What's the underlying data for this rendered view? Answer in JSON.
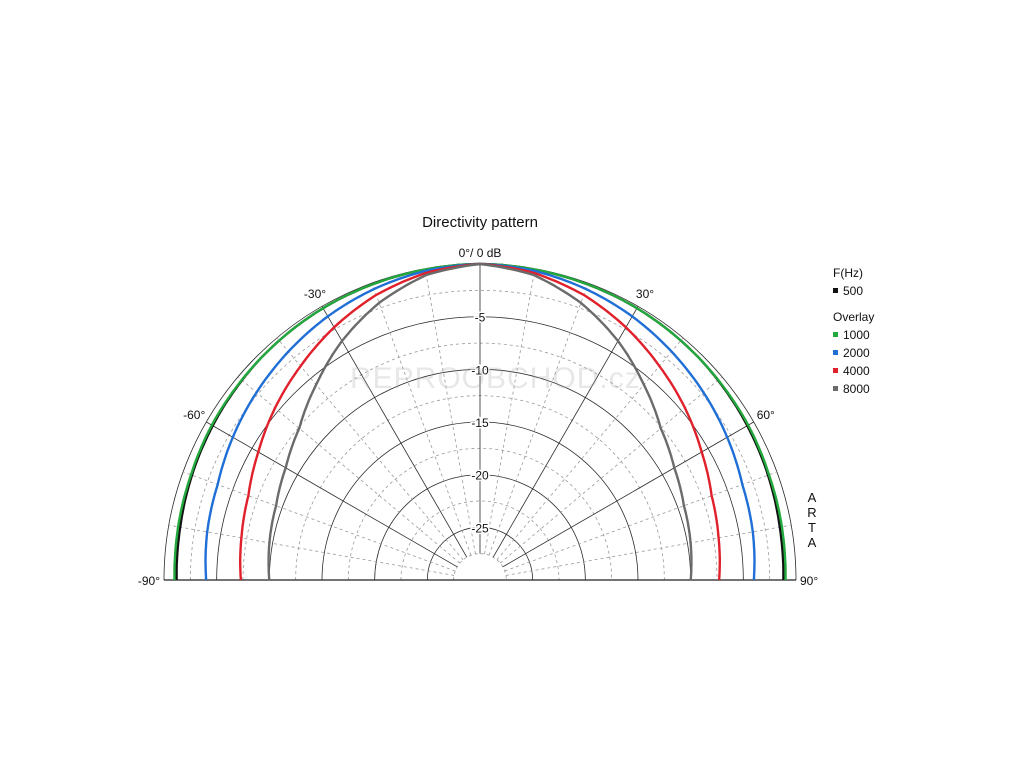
{
  "chart_data": {
    "type": "polar",
    "title": "Directivity pattern",
    "top_label": "0°/ 0 dB",
    "vertical_label": [
      "A",
      "R",
      "T",
      "A"
    ],
    "angle_range": [
      -90,
      90
    ],
    "angle_ticks": [
      {
        "angle": -90,
        "label": "-90°"
      },
      {
        "angle": -60,
        "label": "-60°"
      },
      {
        "angle": -30,
        "label": "-30°"
      },
      {
        "angle": 30,
        "label": "30°"
      },
      {
        "angle": 60,
        "label": "60°"
      },
      {
        "angle": 90,
        "label": "90°"
      }
    ],
    "radial_range_db": [
      -30,
      0
    ],
    "radial_ticks": [
      {
        "db": -5,
        "label": "-5"
      },
      {
        "db": -10,
        "label": "-10"
      },
      {
        "db": -15,
        "label": "-15"
      },
      {
        "db": -20,
        "label": "-20"
      },
      {
        "db": -25,
        "label": "-25"
      }
    ],
    "legend": {
      "header": "F(Hz)",
      "overlay_header": "Overlay",
      "main": {
        "name": "500",
        "color": "#111111"
      },
      "overlays": [
        {
          "name": "1000",
          "color": "#22a83c"
        },
        {
          "name": "2000",
          "color": "#1f6fd6"
        },
        {
          "name": "4000",
          "color": "#e0202a"
        },
        {
          "name": "8000",
          "color": "#6b6b6b"
        }
      ]
    },
    "series": [
      {
        "name": "500",
        "color": "#111111",
        "angles": [
          0,
          15,
          30,
          45,
          60,
          70,
          80,
          90
        ],
        "db": [
          0,
          -0.1,
          -0.2,
          -0.4,
          -0.7,
          -0.9,
          -1.1,
          -1.2
        ]
      },
      {
        "name": "1000",
        "color": "#22a83c",
        "angles": [
          0,
          15,
          30,
          45,
          60,
          70,
          80,
          90
        ],
        "db": [
          0,
          -0.1,
          -0.2,
          -0.4,
          -0.6,
          -0.8,
          -0.9,
          -1.0
        ]
      },
      {
        "name": "2000",
        "color": "#1f6fd6",
        "angles": [
          0,
          10,
          20,
          30,
          40,
          50,
          60,
          70,
          80,
          90
        ],
        "db": [
          0,
          -0.2,
          -0.6,
          -1.1,
          -1.7,
          -2.3,
          -2.9,
          -3.5,
          -3.7,
          -4.0
        ]
      },
      {
        "name": "4000",
        "color": "#e0202a",
        "angles": [
          0,
          10,
          20,
          30,
          40,
          50,
          60,
          70,
          80,
          90
        ],
        "db": [
          0,
          -0.4,
          -1.2,
          -2.3,
          -3.5,
          -4.6,
          -5.7,
          -6.6,
          -7.0,
          -7.3
        ]
      },
      {
        "name": "8000",
        "color": "#6b6b6b",
        "angles": [
          0,
          10,
          20,
          30,
          40,
          50,
          60,
          70,
          80,
          90
        ],
        "db": [
          0,
          -0.6,
          -2.0,
          -3.8,
          -5.8,
          -7.6,
          -8.7,
          -9.4,
          -9.7,
          -10.0
        ]
      }
    ],
    "grid": true
  },
  "watermark": "REPROOBCHOD.cz"
}
